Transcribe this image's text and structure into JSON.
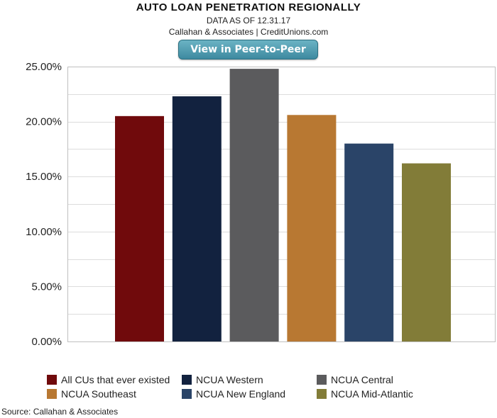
{
  "header": {
    "title": "AUTO LOAN PENETRATION REGIONALLY",
    "date_line": "DATA AS OF 12.31.17",
    "credit_line": "Callahan & Associates | CreditUnions.com"
  },
  "peer_button": {
    "label": "View in Peer-to-Peer"
  },
  "chart_data": {
    "type": "bar",
    "title": "AUTO LOAN PENETRATION REGIONALLY",
    "ylim": [
      0,
      25
    ],
    "y_ticks": [
      "0.00%",
      "5.00%",
      "10.00%",
      "15.00%",
      "20.00%",
      "25.00%"
    ],
    "y_tick_values": [
      0,
      5,
      10,
      15,
      20,
      25
    ],
    "grid": true,
    "legend_position": "bottom",
    "series": [
      {
        "name": "All CUs that ever existed",
        "value": 20.5,
        "color": "#700a0c"
      },
      {
        "name": "NCUA Western",
        "value": 22.3,
        "color": "#12223f"
      },
      {
        "name": "NCUA Central",
        "value": 24.8,
        "color": "#5b5b5d"
      },
      {
        "name": "NCUA Southeast",
        "value": 20.6,
        "color": "#b87832"
      },
      {
        "name": "NCUA New England",
        "value": 18.0,
        "color": "#2a4468"
      },
      {
        "name": "NCUA Mid-Atlantic",
        "value": 16.2,
        "color": "#827c38"
      }
    ]
  },
  "footer": {
    "source": "Source: Callahan & Associates"
  }
}
